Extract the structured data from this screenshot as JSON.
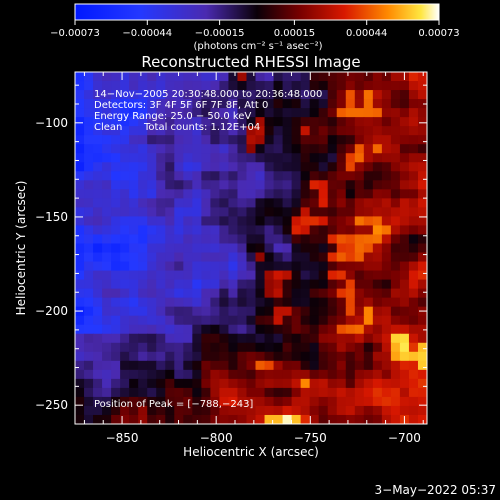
{
  "chart_data": {
    "type": "heatmap",
    "title": "Reconstructed RHESSI Image",
    "xlabel": "Heliocentric X (arcsec)",
    "ylabel": "Heliocentric Y (arcsec)",
    "xlim": [
      -875,
      -688
    ],
    "ylim": [
      -260,
      -73
    ],
    "x_ticks": [
      -850,
      -800,
      -750,
      -700
    ],
    "x_tick_labels": [
      "−850",
      "−800",
      "−750",
      "−700"
    ],
    "y_ticks": [
      -100,
      -150,
      -200,
      -250
    ],
    "y_tick_labels": [
      "−100",
      "−150",
      "−200",
      "−250"
    ],
    "colorbar": {
      "range": [
        -0.00073,
        0.00073
      ],
      "tick_values": [
        -0.00073,
        -0.00044,
        -0.00015,
        0.00015,
        0.00044,
        0.00073
      ],
      "tick_labels": [
        "−0.00073",
        "−0.00044",
        "−0.00015",
        "0.00015",
        "0.00044",
        "0.00073"
      ],
      "units": "(photons cm⁻² s⁻¹ asec⁻²)"
    },
    "annotations": {
      "time_range": "14−Nov−2005 20:30:48.000 to 20:36:48.000",
      "detectors": "Detectors: 3F 4F 5F 6F 7F 8F, Att 0",
      "energy_range": "Energy Range: 25.0 − 50.0 keV",
      "algorithm": "Clean",
      "total_counts": "Total counts: 1.12E+04",
      "peak_position": "Position of Peak = [−788,−243]"
    },
    "timestamp": "3−May−2022 05:37",
    "map_rows": 39,
    "map_cols": 39
  }
}
